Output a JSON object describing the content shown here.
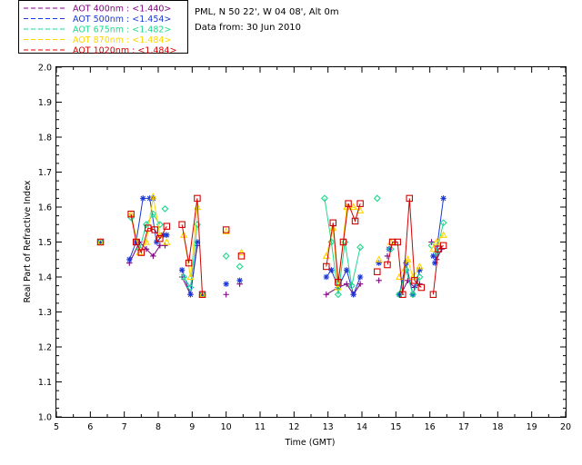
{
  "header": {
    "site": "PML, N 50 22', W 04 08', Alt 0m",
    "date": "Data from: 30 Jun 2010"
  },
  "legend": [
    {
      "label": "AOT  400nm : <1.440>",
      "color": "#7f007f"
    },
    {
      "label": "AOT  500nm : <1.454>",
      "color": "#1c39d4"
    },
    {
      "label": "AOT  675nm : <1.482>",
      "color": "#1ed88c"
    },
    {
      "label": "AOT  870nm : <1.484>",
      "color": "#ffd400"
    },
    {
      "label": "AOT 1020nm : <1.484>",
      "color": "#d40000"
    }
  ],
  "chart_data": {
    "type": "scatter",
    "xlabel": "Time (GMT)",
    "ylabel": "Real Part of Refractive Index",
    "xlim": [
      5,
      20
    ],
    "ylim": [
      1.0,
      2.0
    ],
    "xticks": [
      5,
      6,
      7,
      8,
      9,
      10,
      11,
      12,
      13,
      14,
      15,
      16,
      17,
      18,
      19,
      20
    ],
    "yticks": [
      1.0,
      1.1,
      1.2,
      1.3,
      1.4,
      1.5,
      1.6,
      1.7,
      1.8,
      1.9,
      2.0
    ],
    "series": [
      {
        "name": "AOT  400nm : <1.440>",
        "marker": "plus",
        "color": "#7f007f",
        "segments": [
          [
            [
              7.15,
              1.44
            ],
            [
              7.45,
              1.5
            ],
            [
              7.65,
              1.48
            ],
            [
              7.85,
              1.46
            ],
            [
              8.05,
              1.49
            ]
          ],
          [
            [
              8.7,
              1.4
            ],
            [
              8.95,
              1.35
            ],
            [
              9.15,
              1.49
            ]
          ],
          [
            [
              12.95,
              1.35
            ],
            [
              13.3,
              1.37
            ],
            [
              13.55,
              1.38
            ],
            [
              13.75,
              1.35
            ],
            [
              13.95,
              1.38
            ]
          ],
          [
            [
              15.15,
              1.35
            ],
            [
              15.35,
              1.39
            ],
            [
              15.55,
              1.37
            ],
            [
              15.7,
              1.38
            ]
          ],
          [
            [
              16.2,
              1.45
            ],
            [
              16.35,
              1.48
            ]
          ]
        ],
        "points": [
          [
            6.3,
            1.5
          ],
          [
            8.2,
            1.49
          ],
          [
            9.3,
            1.35
          ],
          [
            10.0,
            1.35
          ],
          [
            10.4,
            1.38
          ],
          [
            14.5,
            1.39
          ],
          [
            14.75,
            1.46
          ],
          [
            16.05,
            1.5
          ]
        ]
      },
      {
        "name": "AOT  500nm : <1.454>",
        "marker": "star",
        "color": "#1c39d4",
        "segments": [
          [
            [
              7.15,
              1.45
            ],
            [
              7.35,
              1.5
            ],
            [
              7.55,
              1.625
            ],
            [
              7.75,
              1.625
            ],
            [
              7.95,
              1.5
            ],
            [
              8.15,
              1.52
            ]
          ],
          [
            [
              8.7,
              1.42
            ],
            [
              8.95,
              1.35
            ],
            [
              9.15,
              1.5
            ]
          ],
          [
            [
              12.95,
              1.4
            ],
            [
              13.1,
              1.42
            ],
            [
              13.3,
              1.37
            ],
            [
              13.55,
              1.42
            ],
            [
              13.75,
              1.35
            ],
            [
              13.95,
              1.4
            ]
          ],
          [
            [
              15.1,
              1.35
            ],
            [
              15.3,
              1.44
            ],
            [
              15.5,
              1.35
            ],
            [
              15.7,
              1.42
            ]
          ],
          [
            [
              16.15,
              1.44
            ],
            [
              16.4,
              1.625
            ]
          ]
        ],
        "points": [
          [
            6.3,
            1.5
          ],
          [
            7.85,
            1.625
          ],
          [
            8.25,
            1.52
          ],
          [
            9.3,
            1.35
          ],
          [
            10.0,
            1.38
          ],
          [
            10.4,
            1.39
          ],
          [
            14.5,
            1.44
          ],
          [
            14.8,
            1.48
          ],
          [
            16.1,
            1.46
          ]
        ]
      },
      {
        "name": "AOT  675nm : <1.482>",
        "marker": "diamond",
        "color": "#1ed88c",
        "segments": [
          [
            [
              7.2,
              1.57
            ],
            [
              7.45,
              1.48
            ],
            [
              7.65,
              1.55
            ],
            [
              7.85,
              1.58
            ],
            [
              8.05,
              1.55
            ]
          ],
          [
            [
              8.75,
              1.4
            ],
            [
              8.95,
              1.37
            ],
            [
              9.15,
              1.55
            ]
          ],
          [
            [
              12.9,
              1.625
            ],
            [
              13.1,
              1.5
            ],
            [
              13.3,
              1.35
            ],
            [
              13.5,
              1.5
            ],
            [
              13.7,
              1.375
            ],
            [
              13.95,
              1.485
            ]
          ],
          [
            [
              15.1,
              1.35
            ],
            [
              15.3,
              1.42
            ],
            [
              15.5,
              1.35
            ],
            [
              15.7,
              1.4
            ]
          ],
          [
            [
              16.2,
              1.47
            ],
            [
              16.4,
              1.555
            ]
          ]
        ],
        "points": [
          [
            6.3,
            1.5
          ],
          [
            8.2,
            1.595
          ],
          [
            9.3,
            1.35
          ],
          [
            10.0,
            1.46
          ],
          [
            10.4,
            1.43
          ],
          [
            14.45,
            1.625
          ],
          [
            14.85,
            1.48
          ],
          [
            16.05,
            1.49
          ]
        ]
      },
      {
        "name": "AOT  870nm : <1.484>",
        "marker": "triangle",
        "color": "#ffd400",
        "segments": [
          [
            [
              7.2,
              1.58
            ],
            [
              7.45,
              1.47
            ],
            [
              7.65,
              1.5
            ],
            [
              7.85,
              1.63
            ],
            [
              8.05,
              1.52
            ]
          ],
          [
            [
              8.75,
              1.52
            ],
            [
              8.95,
              1.4
            ],
            [
              9.15,
              1.6
            ]
          ],
          [
            [
              12.95,
              1.46
            ],
            [
              13.15,
              1.54
            ],
            [
              13.3,
              1.37
            ],
            [
              13.55,
              1.6
            ],
            [
              13.75,
              1.6
            ],
            [
              13.95,
              1.59
            ]
          ],
          [
            [
              15.1,
              1.4
            ],
            [
              15.35,
              1.45
            ],
            [
              15.5,
              1.4
            ],
            [
              15.7,
              1.43
            ]
          ],
          [
            [
              16.2,
              1.5
            ],
            [
              16.4,
              1.52
            ]
          ]
        ],
        "points": [
          [
            6.3,
            1.5
          ],
          [
            8.25,
            1.5
          ],
          [
            9.3,
            1.35
          ],
          [
            10.0,
            1.53
          ],
          [
            10.45,
            1.47
          ],
          [
            14.5,
            1.45
          ],
          [
            14.85,
            1.5
          ],
          [
            16.1,
            1.48
          ]
        ]
      },
      {
        "name": "AOT 1020nm : <1.484>",
        "marker": "square",
        "color": "#d40000",
        "segments": [
          [
            [
              7.2,
              1.58
            ],
            [
              7.35,
              1.5
            ],
            [
              7.5,
              1.47
            ],
            [
              7.7,
              1.54
            ],
            [
              7.9,
              1.535
            ],
            [
              8.05,
              1.51
            ],
            [
              8.25,
              1.545
            ]
          ],
          [
            [
              8.7,
              1.55
            ],
            [
              8.9,
              1.44
            ],
            [
              9.15,
              1.625
            ],
            [
              9.3,
              1.35
            ]
          ],
          [
            [
              12.95,
              1.43
            ],
            [
              13.15,
              1.555
            ],
            [
              13.3,
              1.385
            ],
            [
              13.45,
              1.5
            ],
            [
              13.6,
              1.61
            ],
            [
              13.8,
              1.56
            ],
            [
              13.95,
              1.61
            ]
          ],
          [
            [
              14.75,
              1.435
            ],
            [
              14.9,
              1.5
            ],
            [
              15.05,
              1.5
            ],
            [
              15.2,
              1.35
            ],
            [
              15.4,
              1.625
            ],
            [
              15.55,
              1.39
            ],
            [
              15.75,
              1.37
            ]
          ],
          [
            [
              16.1,
              1.35
            ],
            [
              16.25,
              1.48
            ],
            [
              16.4,
              1.49
            ]
          ]
        ],
        "points": [
          [
            6.3,
            1.5
          ],
          [
            10.0,
            1.535
          ],
          [
            10.45,
            1.46
          ],
          [
            14.45,
            1.415
          ]
        ]
      }
    ]
  }
}
